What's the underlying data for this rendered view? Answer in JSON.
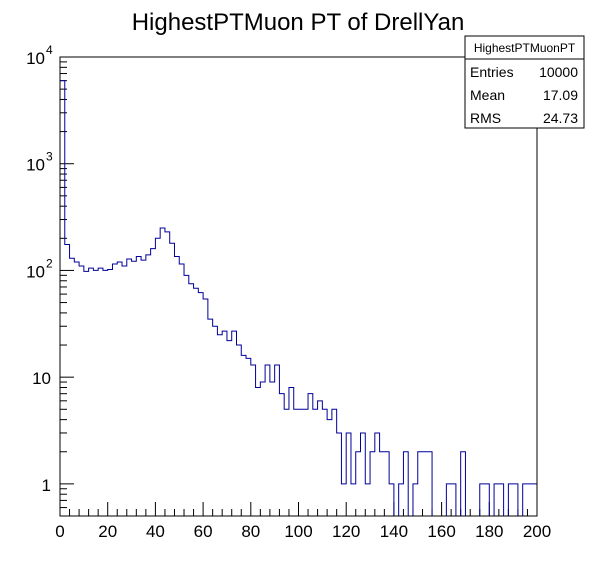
{
  "chart_data": {
    "type": "histogram",
    "title": "HighestPTMuon PT of DrellYan",
    "xlabel": "",
    "ylabel": "",
    "xlim": [
      0,
      200
    ],
    "ylim": [
      0.5,
      10000
    ],
    "y_scale": "log",
    "bin_width": 2,
    "line_color": "#000099",
    "x_ticks": [
      {
        "value": 0,
        "label": "0"
      },
      {
        "value": 20,
        "label": "20"
      },
      {
        "value": 40,
        "label": "40"
      },
      {
        "value": 60,
        "label": "60"
      },
      {
        "value": 80,
        "label": "80"
      },
      {
        "value": 100,
        "label": "100"
      },
      {
        "value": 120,
        "label": "120"
      },
      {
        "value": 140,
        "label": "140"
      },
      {
        "value": 160,
        "label": "160"
      },
      {
        "value": 180,
        "label": "180"
      },
      {
        "value": 200,
        "label": "200"
      }
    ],
    "y_ticks": [
      {
        "value": 1,
        "label": "1"
      },
      {
        "value": 10,
        "label": "10"
      },
      {
        "value": 100,
        "label": "10",
        "exp": "2"
      },
      {
        "value": 1000,
        "label": "10",
        "exp": "3"
      },
      {
        "value": 10000,
        "label": "10",
        "exp": "4"
      }
    ],
    "values": [
      6000,
      175,
      130,
      120,
      110,
      98,
      105,
      100,
      105,
      100,
      102,
      115,
      120,
      110,
      128,
      122,
      135,
      125,
      140,
      160,
      200,
      250,
      230,
      180,
      135,
      115,
      90,
      75,
      68,
      62,
      54,
      35,
      30,
      25,
      27,
      22,
      27,
      20,
      16,
      15,
      13,
      8,
      9,
      13,
      9,
      13,
      7,
      5,
      8,
      5,
      5,
      5,
      7,
      5,
      6,
      5,
      4,
      5,
      3,
      1,
      3,
      1,
      2,
      3,
      1,
      2,
      3,
      2,
      2,
      1,
      0,
      1,
      2,
      0,
      1,
      2,
      2,
      2,
      0,
      0,
      0,
      1,
      1,
      0,
      2,
      0,
      0,
      0,
      1,
      1,
      0,
      1,
      1,
      0,
      1,
      1,
      0,
      1,
      1,
      1
    ]
  },
  "stats_box": {
    "name": "HighestPTMuonPT",
    "rows": [
      {
        "label": "Entries",
        "value": "10000"
      },
      {
        "label": "Mean",
        "value": "17.09"
      },
      {
        "label": "RMS",
        "value": "24.73"
      }
    ]
  }
}
